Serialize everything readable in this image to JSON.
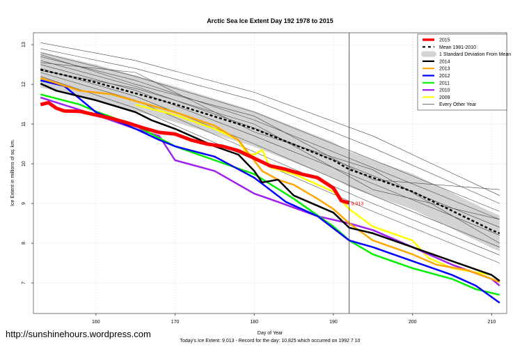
{
  "chart_data": {
    "type": "line",
    "title": "Arctic Sea Ice Extent Day 192 1978 to 2015",
    "xlabel": "Day of Year",
    "ylabel": "Ice Extent in millions of sq. km.",
    "subtitle": "Today's Ice Extent: 9.013  - Record for the day: 10.825 which occurred on 1992 7 10",
    "watermark": "http://sunshinehours.wordpress.com",
    "xlim": [
      152.1,
      211.9
    ],
    "ylim": [
      6.23,
      13.3
    ],
    "xticks": [
      160,
      170,
      180,
      190,
      200,
      210
    ],
    "yticks": [
      7,
      8,
      9,
      10,
      11,
      12,
      13
    ],
    "grid": true,
    "legend_position": "top-right",
    "current_day": 192,
    "current_value_label": "9.013",
    "legend": [
      {
        "label": "2015",
        "color": "#ff0000",
        "style": "thick"
      },
      {
        "label": "Mean 1981-2010",
        "color": "#000000",
        "style": "dashed"
      },
      {
        "label": "1 Standard Deviation From Mean",
        "color": "#d3d3d3",
        "style": "band"
      },
      {
        "label": "2014",
        "color": "#000000",
        "style": "line"
      },
      {
        "label": "2013",
        "color": "#ffa500",
        "style": "line"
      },
      {
        "label": "2012",
        "color": "#0000ff",
        "style": "line"
      },
      {
        "label": "2011",
        "color": "#00ee00",
        "style": "line"
      },
      {
        "label": "2010",
        "color": "#a020f0",
        "style": "line"
      },
      {
        "label": "2009",
        "color": "#ffff00",
        "style": "line"
      },
      {
        "label": "Every Other Year",
        "color": "#555555",
        "style": "thin"
      }
    ],
    "mean": {
      "x": [
        153,
        160,
        170,
        180,
        190,
        192,
        200,
        210,
        211
      ],
      "y": [
        12.37,
        12.05,
        11.5,
        10.88,
        10.09,
        9.86,
        9.3,
        8.33,
        8.25
      ]
    },
    "sd": 0.45,
    "other_years": [
      {
        "x": [
          153,
          165,
          180,
          195,
          211
        ],
        "y": [
          13.05,
          12.6,
          11.8,
          10.7,
          9.2
        ]
      },
      {
        "x": [
          153,
          165,
          180,
          195,
          211
        ],
        "y": [
          12.9,
          12.4,
          11.6,
          10.4,
          9.0
        ]
      },
      {
        "x": [
          153,
          165,
          180,
          195,
          211
        ],
        "y": [
          12.8,
          12.2,
          11.3,
          10.1,
          8.8
        ]
      },
      {
        "x": [
          153,
          165,
          180,
          195,
          211
        ],
        "y": [
          12.7,
          12.1,
          11.1,
          9.9,
          8.6
        ]
      },
      {
        "x": [
          153,
          165,
          180,
          195,
          211
        ],
        "y": [
          12.6,
          11.95,
          10.9,
          9.7,
          8.4
        ]
      },
      {
        "x": [
          153,
          165,
          180,
          195,
          211
        ],
        "y": [
          12.5,
          11.85,
          10.7,
          9.5,
          8.2
        ]
      },
      {
        "x": [
          153,
          165,
          180,
          195,
          211
        ],
        "y": [
          12.4,
          11.7,
          10.5,
          9.2,
          7.9
        ]
      },
      {
        "x": [
          153,
          165,
          180,
          195,
          211
        ],
        "y": [
          12.3,
          11.6,
          10.3,
          9.0,
          7.7
        ]
      },
      {
        "x": [
          153,
          165,
          180,
          195,
          211
        ],
        "y": [
          12.2,
          11.4,
          10.1,
          8.8,
          7.5
        ]
      },
      {
        "x": [
          153,
          165,
          180,
          195,
          211
        ],
        "y": [
          12.75,
          12.0,
          11.2,
          9.6,
          9.35
        ]
      },
      {
        "x": [
          153,
          165,
          180,
          195,
          211
        ],
        "y": [
          12.55,
          12.3,
          10.8,
          9.85,
          8.0
        ]
      },
      {
        "x": [
          153,
          165,
          180,
          195,
          211
        ],
        "y": [
          12.35,
          11.9,
          11.0,
          9.35,
          8.6
        ]
      }
    ],
    "series": [
      {
        "name": "2009",
        "color": "#ffff00",
        "x": [
          165,
          170,
          175,
          178,
          179,
          180,
          181,
          182,
          185,
          190,
          192,
          195,
          200,
          202,
          205,
          210
        ],
        "y": [
          11.49,
          11.23,
          10.88,
          10.6,
          10.26,
          10.23,
          10.35,
          9.91,
          9.74,
          9.3,
          8.86,
          8.42,
          8.07,
          7.63,
          7.37,
          7.2
        ]
      },
      {
        "name": "2010",
        "color": "#a020f0",
        "x": [
          153,
          160,
          165,
          168,
          170,
          175,
          180,
          183,
          188,
          192,
          195,
          200,
          205,
          210,
          211
        ],
        "y": [
          11.67,
          11.23,
          10.88,
          10.7,
          10.09,
          9.82,
          9.25,
          9.04,
          8.68,
          8.5,
          8.33,
          7.9,
          7.46,
          7.1,
          6.93
        ]
      },
      {
        "name": "2011",
        "color": "#00ee00",
        "x": [
          153,
          158,
          160,
          165,
          170,
          175,
          180,
          185,
          190,
          192,
          195,
          200,
          205,
          208,
          211
        ],
        "y": [
          11.75,
          11.49,
          11.32,
          10.96,
          10.44,
          10.09,
          9.74,
          9.12,
          8.42,
          8.07,
          7.72,
          7.37,
          7.1,
          6.84,
          6.7
        ]
      },
      {
        "name": "2012",
        "color": "#0000ff",
        "x": [
          153,
          156,
          160,
          165,
          168,
          170,
          175,
          180,
          184,
          188,
          192,
          195,
          200,
          205,
          208,
          211
        ],
        "y": [
          12.1,
          11.96,
          11.3,
          10.88,
          10.6,
          10.44,
          10.18,
          9.65,
          9.04,
          8.68,
          8.07,
          7.9,
          7.55,
          7.2,
          6.93,
          6.5
        ]
      },
      {
        "name": "2013",
        "color": "#ffa500",
        "x": [
          153,
          158,
          162,
          165,
          170,
          175,
          178,
          181,
          183,
          185,
          188,
          190,
          192,
          195,
          200,
          203,
          207,
          210,
          211
        ],
        "y": [
          12.16,
          11.84,
          11.75,
          11.58,
          11.3,
          10.96,
          10.6,
          9.82,
          9.6,
          9.47,
          9.12,
          8.86,
          8.5,
          8.07,
          7.72,
          7.46,
          7.32,
          7.1,
          7.02
        ]
      },
      {
        "name": "2014",
        "color": "#000000",
        "x": [
          153,
          155,
          160,
          165,
          167,
          170,
          175,
          178,
          180,
          181,
          183,
          185,
          190,
          192,
          195,
          200,
          205,
          210,
          211
        ],
        "y": [
          12.02,
          11.84,
          11.6,
          11.3,
          11.1,
          10.88,
          10.44,
          10.23,
          9.82,
          9.53,
          9.6,
          9.2,
          8.77,
          8.39,
          8.25,
          7.9,
          7.55,
          7.2,
          7.05
        ]
      },
      {
        "name": "2015",
        "color": "#ff0000",
        "x": [
          153,
          154,
          155,
          156,
          158,
          160,
          162,
          164,
          166,
          168,
          170,
          172,
          174,
          176,
          178,
          180,
          182,
          184,
          186,
          188,
          190,
          191,
          192
        ],
        "y": [
          11.49,
          11.54,
          11.4,
          11.33,
          11.32,
          11.23,
          11.14,
          11.03,
          10.9,
          10.79,
          10.75,
          10.6,
          10.5,
          10.44,
          10.33,
          10.14,
          9.95,
          9.86,
          9.74,
          9.65,
          9.39,
          9.07,
          9.013
        ]
      }
    ]
  }
}
